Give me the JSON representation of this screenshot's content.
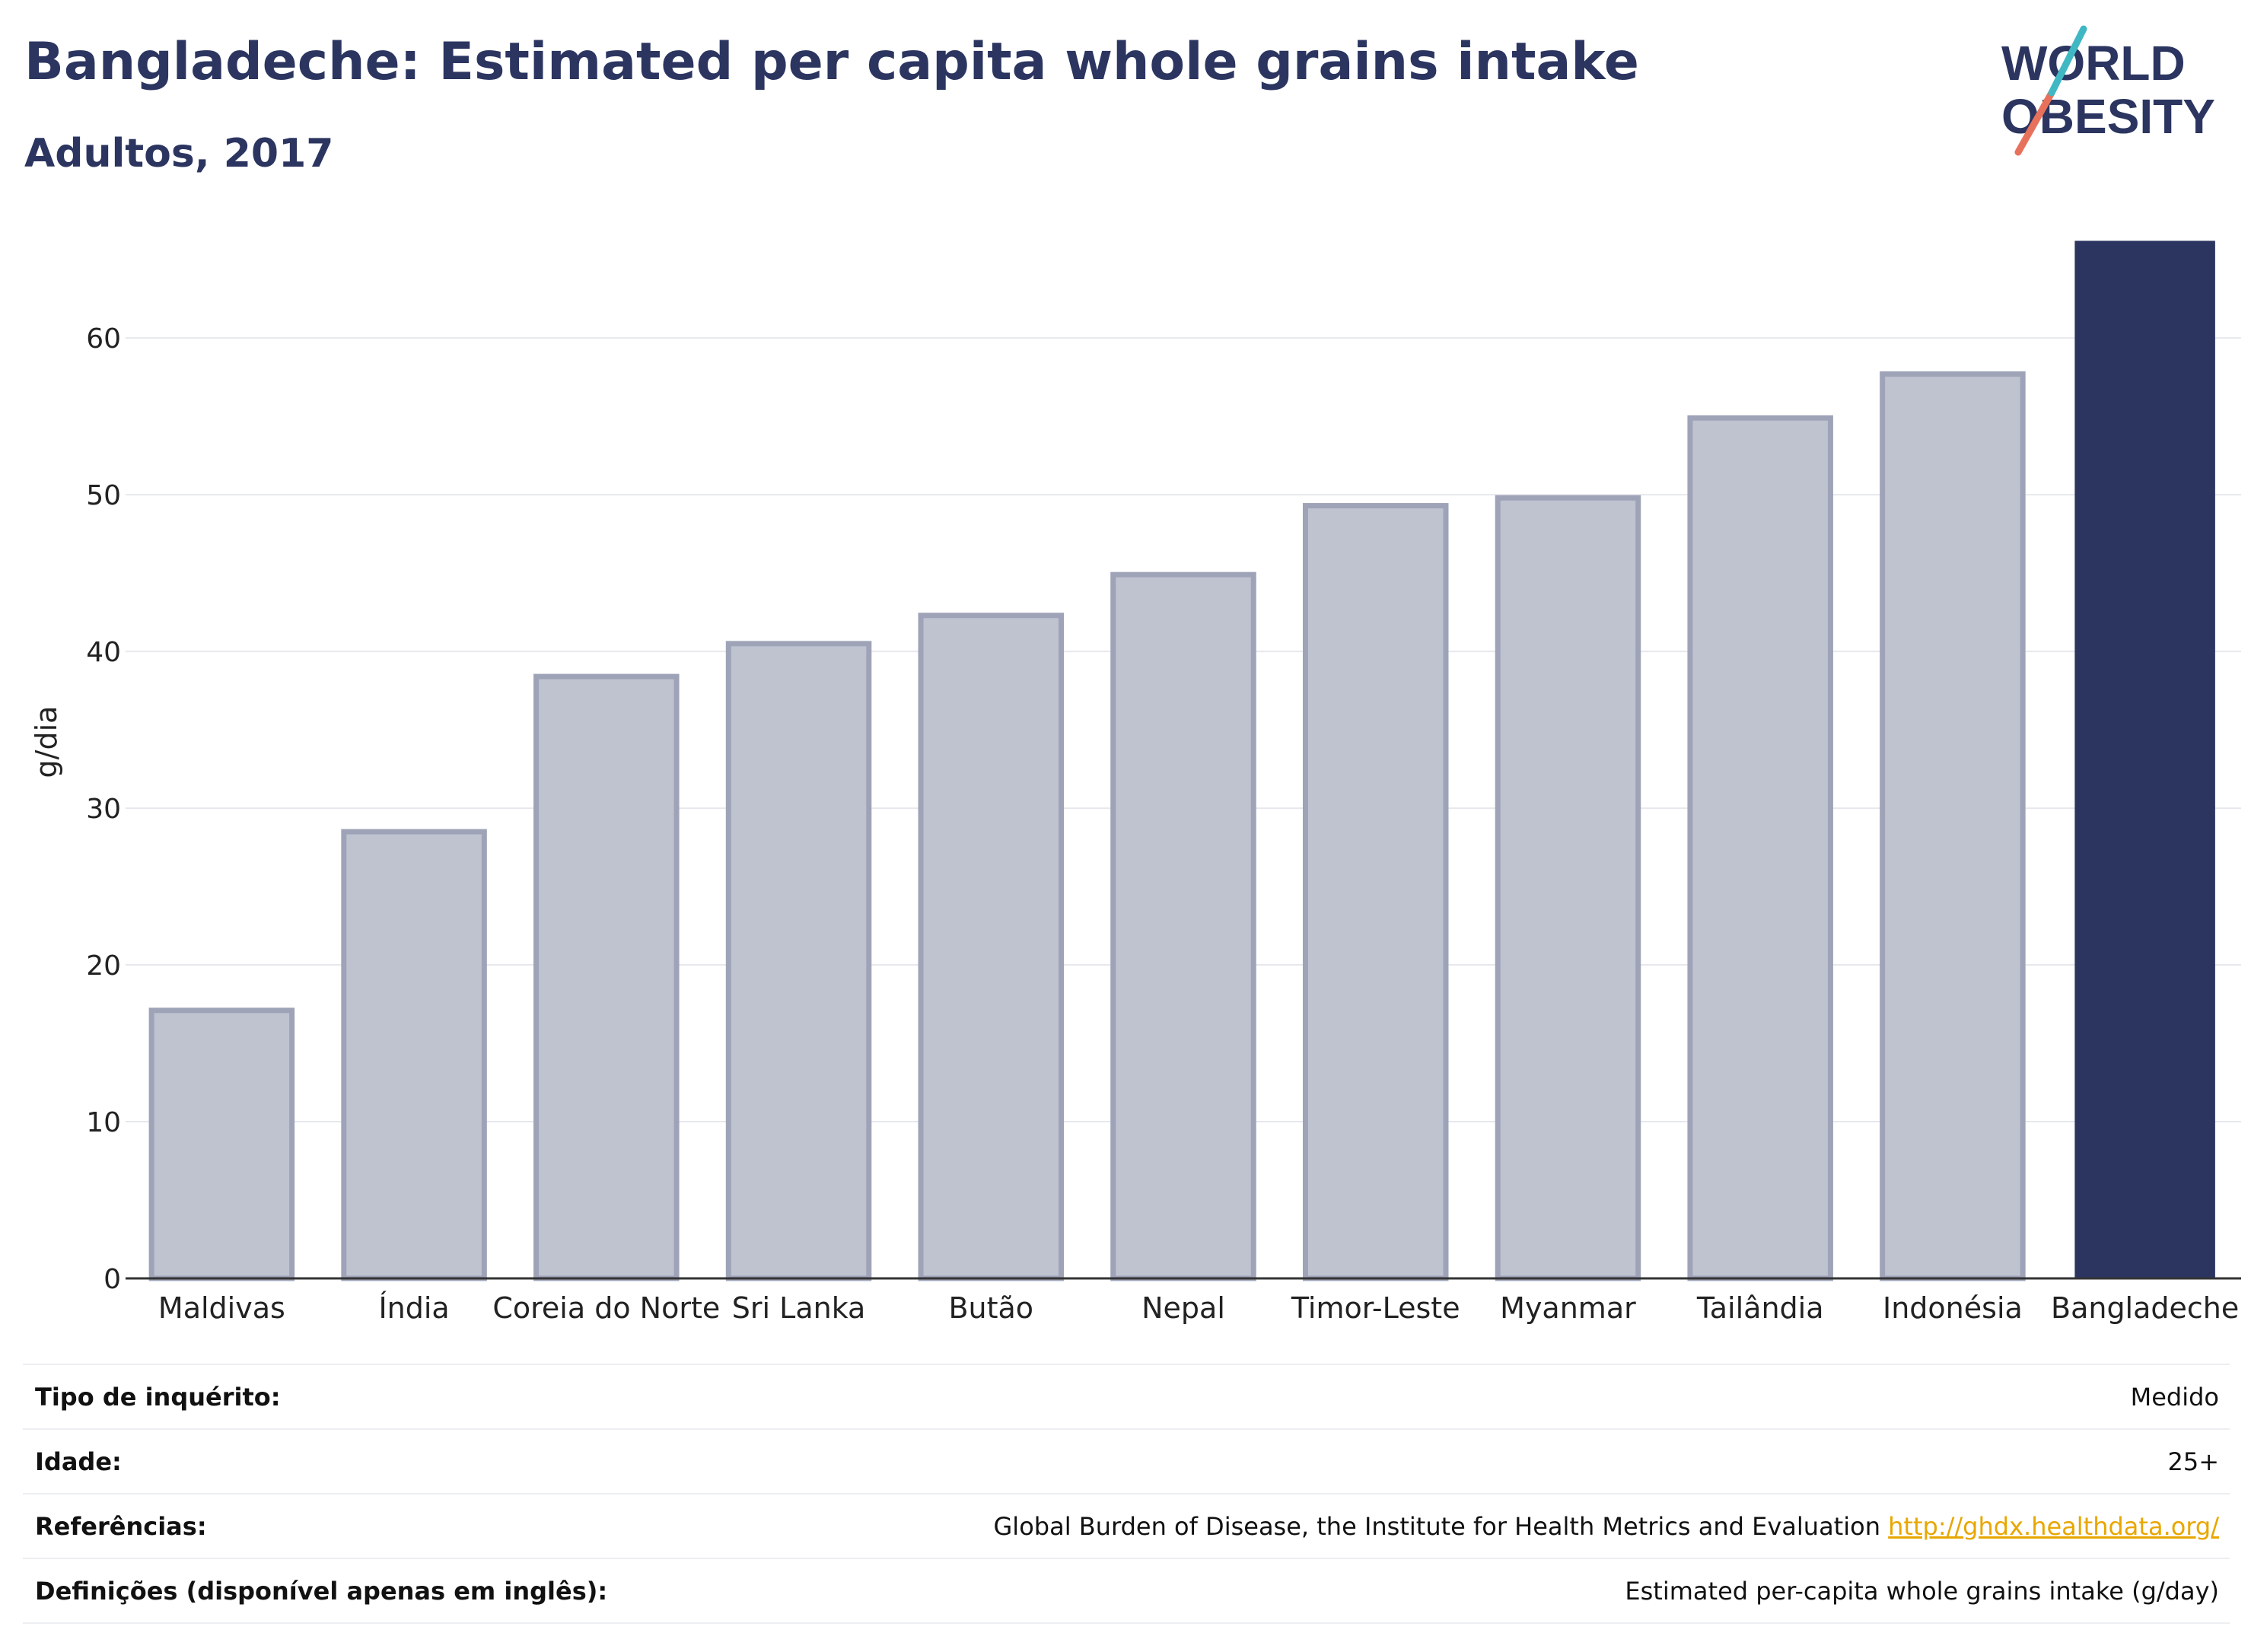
{
  "header": {
    "title": "Bangladeche: Estimated per capita whole grains intake",
    "subtitle": "Adultos, 2017"
  },
  "logo": {
    "line1": "WORLD",
    "line2": "OBESITY"
  },
  "chart_data": {
    "type": "bar",
    "ylabel": "g/dia",
    "ylim": [
      0,
      67
    ],
    "yticks": [
      0,
      10,
      20,
      30,
      40,
      50,
      60
    ],
    "grid": true,
    "categories": [
      "Maldivas",
      "Índia",
      "Coreia do Norte",
      "Sri Lanka",
      "Butão",
      "Nepal",
      "Timor-Leste",
      "Myanmar",
      "Tailândia",
      "Indonésia",
      "Bangladeche"
    ],
    "values": [
      17.1,
      28.5,
      38.4,
      40.5,
      42.3,
      44.9,
      49.3,
      49.8,
      54.9,
      57.7,
      66.2
    ],
    "highlight": "Bangladeche",
    "colors": {
      "default_fill": "#bfc3d0",
      "default_stroke": "#9ea3b8",
      "highlight": "#2b3560",
      "grid": "#e6e8ee",
      "axis": "#333333"
    }
  },
  "meta": [
    {
      "key": "Tipo de inquérito:",
      "value": "Medido",
      "link": ""
    },
    {
      "key": "Idade:",
      "value": "25+",
      "link": ""
    },
    {
      "key": "Referências:",
      "value": "Global Burden of Disease, the Institute for Health Metrics and Evaluation",
      "link": "http://ghdx.healthdata.org/"
    },
    {
      "key": "Definições (disponível apenas em inglês):",
      "value": "Estimated per-capita whole grains intake (g/day)",
      "link": ""
    }
  ]
}
